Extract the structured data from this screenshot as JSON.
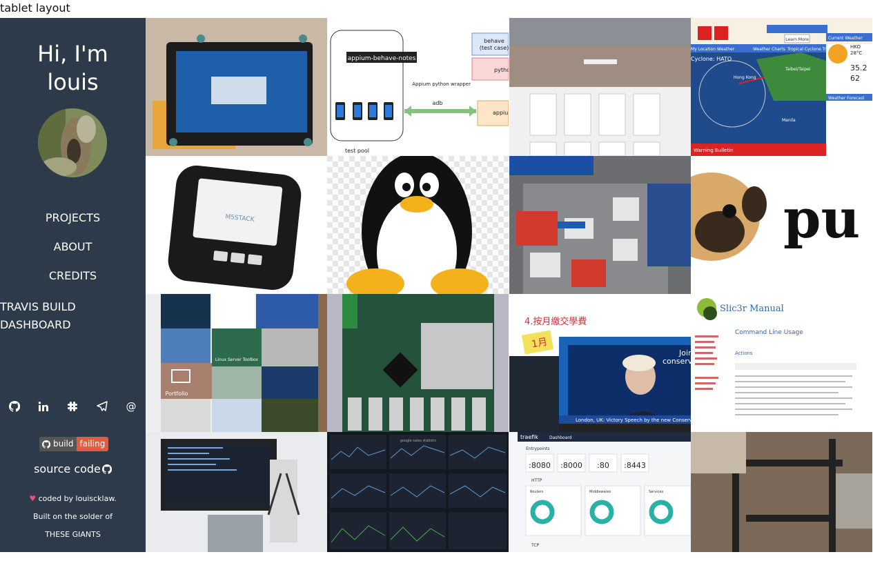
{
  "top_label": "tablet layout",
  "sidebar": {
    "greeting_line1": "Hi, I'm",
    "greeting_line2": "louis",
    "nav": [
      "PROJECTS",
      "ABOUT",
      "CREDITS",
      "TRAVIS BUILD DASHBOARD"
    ],
    "social_icons": [
      "github-icon",
      "linkedin-icon",
      "slack-icon",
      "telegram-icon",
      "email-icon"
    ],
    "badge": {
      "left": "build",
      "right": "failing",
      "right_color": "#e05d44"
    },
    "source_code": "source code",
    "footer_coded": "coded by louiscklaw.",
    "footer_built": "Built on the solder of",
    "footer_giants": "THESE GIANTS"
  },
  "tiles": {
    "appium_label": "appium-behave-notes",
    "appium_behave": "behave",
    "appium_testcase": "(test case)",
    "appium_python": "python",
    "appium_adb": "adb",
    "appium_wrapper": "Appium python wrapper",
    "appium_pool": "test pool",
    "appium_appium": "appium",
    "weather_cyclone": "Cyclone: HATO",
    "weather_menu": "My Location Weather",
    "weather_charts": "Weather Charts",
    "weather_track": "Tropical Cyclone Track",
    "weather_hko": "HKO",
    "weather_temp": "28°C",
    "weather_t2": "35.2",
    "weather_h2": "62",
    "weather_current": "Current Weather",
    "weather_forecast": "Weather Forecast",
    "weather_warning": "Warning Bulletin",
    "weather_taipei": "Taibei/Taipei",
    "weather_hongkong": "Hong Kong",
    "weather_manila": "Manila",
    "weather_learn": "Learn More",
    "pug_text": "pu",
    "m5_label": "M5STACK",
    "boris_title": "4.按月繳交學費",
    "boris_month": "1月",
    "boris_ticker": "London, UK: Victory Speech by the new Conservative L",
    "boris_join": "Join",
    "boris_conserv": "conserva",
    "slic3r_title": "Slic3r Manual",
    "slic3r_heading": "Command Line Usage",
    "slic3r_actions": "Actions",
    "portfolio_label": "Portfolio",
    "linux_toolbox": "Linux Server Toolbox",
    "traefik_title": "traefik",
    "traefik_dash": "Dashboard",
    "traefik_ep": "Entrypoints",
    "traefik_ports": [
      ":8080",
      ":8000",
      ":80",
      ":8443"
    ],
    "traefik_http": "HTTP",
    "traefik_tcp": "TCP",
    "traefik_routers": "Routers",
    "traefik_middlewares": "Middlewares",
    "traefik_services": "Services",
    "grafana_label": "google sales statistic"
  }
}
